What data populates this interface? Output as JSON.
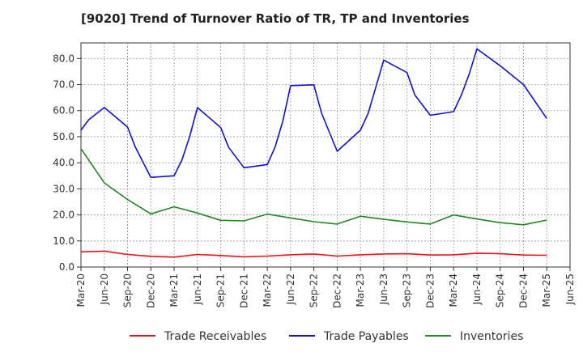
{
  "title": "[9020]  Trend of Turnover Ratio of TR, TP and Inventories",
  "chart_data": {
    "type": "line",
    "title": "[9020]  Trend of Turnover Ratio of TR, TP and Inventories",
    "xlabel": "",
    "ylabel": "",
    "ylim": [
      0,
      86
    ],
    "yticks": [
      "0.0",
      "10.0",
      "20.0",
      "30.0",
      "40.0",
      "50.0",
      "60.0",
      "70.0",
      "80.0"
    ],
    "tick_labels": [
      "Mar-20",
      "Jun-20",
      "Sep-20",
      "Dec-20",
      "Mar-21",
      "Jun-21",
      "Sep-21",
      "Dec-21",
      "Mar-22",
      "Jun-22",
      "Sep-22",
      "Dec-22",
      "Mar-23",
      "Jun-23",
      "Sep-23",
      "Dec-23",
      "Mar-24",
      "Jun-24",
      "Sep-24",
      "Dec-24",
      "Mar-25",
      "Jun-25"
    ],
    "categories": [
      "Mar-20",
      "Apr-20",
      "May-20",
      "Jun-20",
      "Jul-20",
      "Aug-20",
      "Sep-20",
      "Oct-20",
      "Nov-20",
      "Dec-20",
      "Jan-21",
      "Feb-21",
      "Mar-21",
      "Apr-21",
      "May-21",
      "Jun-21",
      "Jul-21",
      "Aug-21",
      "Sep-21",
      "Oct-21",
      "Nov-21",
      "Dec-21",
      "Jan-22",
      "Feb-22",
      "Mar-22",
      "Apr-22",
      "May-22",
      "Jun-22",
      "Jul-22",
      "Aug-22",
      "Sep-22",
      "Oct-22",
      "Nov-22",
      "Dec-22",
      "Jan-23",
      "Feb-23",
      "Mar-23",
      "Apr-23",
      "May-23",
      "Jun-23",
      "Jul-23",
      "Aug-23",
      "Sep-23",
      "Oct-23",
      "Nov-23",
      "Dec-23",
      "Jan-24",
      "Feb-24",
      "Mar-24",
      "Apr-24",
      "May-24",
      "Jun-24",
      "Jul-24",
      "Aug-24",
      "Sep-24",
      "Oct-24",
      "Nov-24",
      "Dec-24",
      "Jan-25",
      "Feb-25",
      "Mar-25"
    ],
    "grid": true,
    "legend_position": "bottom",
    "series": [
      {
        "name": "Trade Receivables",
        "color": "#ee1111",
        "values": [
          5.8,
          null,
          null,
          6.1,
          null,
          null,
          4.8,
          null,
          null,
          4.1,
          null,
          null,
          3.8,
          null,
          null,
          4.8,
          null,
          null,
          4.4,
          null,
          null,
          3.9,
          null,
          null,
          4.2,
          null,
          null,
          4.7,
          null,
          null,
          5.0,
          null,
          null,
          4.2,
          null,
          null,
          4.7,
          null,
          null,
          5.0,
          null,
          null,
          5.1,
          null,
          null,
          4.6,
          null,
          null,
          4.7,
          null,
          null,
          5.3,
          null,
          null,
          5.1,
          null,
          null,
          4.6,
          null,
          null,
          4.5
        ]
      },
      {
        "name": "Trade Payables",
        "color": "#1111cc",
        "values": [
          52.5,
          56.5,
          null,
          61.2,
          null,
          null,
          53.7,
          46.0,
          null,
          34.4,
          null,
          null,
          35.0,
          41.0,
          50.0,
          61.2,
          null,
          null,
          53.5,
          46.0,
          null,
          38.1,
          null,
          null,
          39.3,
          46.0,
          56.0,
          69.6,
          null,
          null,
          69.9,
          59.0,
          null,
          44.4,
          null,
          null,
          52.5,
          59.0,
          null,
          79.4,
          null,
          null,
          74.6,
          66.0,
          null,
          58.2,
          null,
          null,
          59.6,
          66.0,
          74.0,
          83.7,
          null,
          null,
          77.2,
          null,
          null,
          70.0,
          null,
          null,
          57.0
        ]
      },
      {
        "name": "Inventories",
        "color": "#228822",
        "values": [
          45.4,
          null,
          null,
          32.3,
          null,
          null,
          25.9,
          null,
          null,
          20.4,
          null,
          null,
          23.1,
          null,
          null,
          20.7,
          null,
          null,
          17.9,
          null,
          null,
          17.7,
          null,
          null,
          20.3,
          null,
          null,
          18.8,
          null,
          null,
          17.4,
          null,
          null,
          16.5,
          null,
          null,
          19.5,
          null,
          null,
          18.3,
          null,
          null,
          17.3,
          null,
          null,
          16.5,
          null,
          null,
          20.0,
          null,
          null,
          18.4,
          null,
          null,
          17.0,
          null,
          null,
          16.2,
          null,
          null,
          18.0
        ]
      }
    ]
  }
}
